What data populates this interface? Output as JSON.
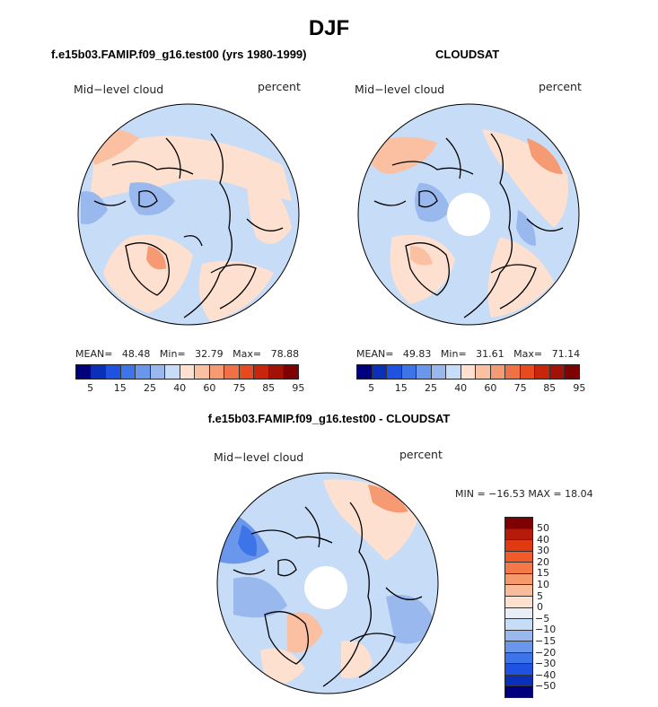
{
  "title": "DJF",
  "panels": [
    {
      "id": "model",
      "title": "f.e15b03.FAMIP.f09_g16.test00 (yrs 1980-1999)",
      "label_left": "Mid−level cloud",
      "label_right": "percent",
      "stats": {
        "mean_label": "MEAN=",
        "mean": "48.48",
        "min_label": "Min=",
        "min": "32.79",
        "max_label": "Max=",
        "max": "78.88"
      },
      "has_pole_hole": false
    },
    {
      "id": "cloudsat",
      "title": "CLOUDSAT",
      "label_left": "Mid−level cloud",
      "label_right": "percent",
      "stats": {
        "mean_label": "MEAN=",
        "mean": "49.83",
        "min_label": "Min=",
        "min": "31.61",
        "max_label": "Max=",
        "max": "71.14"
      },
      "has_pole_hole": true
    },
    {
      "id": "difference",
      "title": "f.e15b03.FAMIP.f09_g16.test00 - CLOUDSAT",
      "label_left": "Mid−level cloud",
      "label_right": "percent",
      "minmax": "MIN = −16.53 MAX =   18.04",
      "has_pole_hole": true
    }
  ],
  "abs_colorbar": {
    "colors": [
      "#00007f",
      "#0a2fb8",
      "#1f52e0",
      "#3d74e8",
      "#6a96ec",
      "#98b8ee",
      "#c7dcf6",
      "#fde0cf",
      "#fbbfa2",
      "#f59a72",
      "#ef7246",
      "#e64a1e",
      "#c8260a",
      "#a31206",
      "#7f0000"
    ],
    "tick_labels": [
      "5",
      "15",
      "25",
      "40",
      "60",
      "75",
      "85",
      "95"
    ]
  },
  "diff_colorbar": {
    "colors": [
      "#7f0000",
      "#b51a0a",
      "#df3a12",
      "#f25a28",
      "#f47848",
      "#f6996c",
      "#f9bb98",
      "#fde0cf",
      "#e8eef5",
      "#c7dcf6",
      "#98b8ee",
      "#6a96ec",
      "#3d74e8",
      "#1f52e0",
      "#0a2fb8",
      "#00007f"
    ],
    "tick_labels": [
      "50",
      "40",
      "30",
      "20",
      "15",
      "10",
      "5",
      "0",
      "−5",
      "−10",
      "−15",
      "−20",
      "−30",
      "−40",
      "−50"
    ]
  },
  "map_colors": {
    "light_blue": "#c7dcf6",
    "mid_blue": "#98b8ee",
    "blue": "#6a96ec",
    "light_orange": "#fde0cf",
    "orange": "#fbbfa2",
    "red_orange": "#f59a72",
    "white": "#ffffff"
  }
}
